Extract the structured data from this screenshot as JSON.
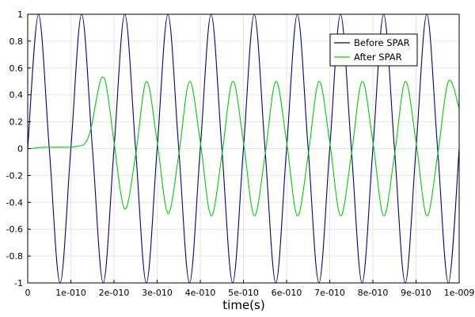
{
  "chart_data": {
    "type": "line",
    "xlabel": "time(s)",
    "ylabel": "",
    "xlim": [
      0,
      1e-09
    ],
    "ylim": [
      -1,
      1
    ],
    "grid": true,
    "legend_position": "top-right",
    "x_ticks": [
      {
        "value": 0,
        "label": "0"
      },
      {
        "value": 1e-10,
        "label": "1e-010"
      },
      {
        "value": 2e-10,
        "label": "2e-010"
      },
      {
        "value": 3e-10,
        "label": "3e-010"
      },
      {
        "value": 4e-10,
        "label": "4e-010"
      },
      {
        "value": 5e-10,
        "label": "5e-010"
      },
      {
        "value": 6e-10,
        "label": "6e-010"
      },
      {
        "value": 7e-10,
        "label": "7e-010"
      },
      {
        "value": 8e-10,
        "label": "8e-010"
      },
      {
        "value": 9e-10,
        "label": "9e-010"
      },
      {
        "value": 1e-09,
        "label": "1e-009"
      }
    ],
    "y_ticks": [
      {
        "value": 1,
        "label": "1"
      },
      {
        "value": 0.8,
        "label": "0.8"
      },
      {
        "value": 0.6,
        "label": "0.6"
      },
      {
        "value": 0.4,
        "label": "0.4"
      },
      {
        "value": 0.2,
        "label": "0.2"
      },
      {
        "value": 0,
        "label": "0"
      },
      {
        "value": -0.2,
        "label": "-0.2"
      },
      {
        "value": -0.4,
        "label": "-0.4"
      },
      {
        "value": -0.6,
        "label": "-0.6"
      },
      {
        "value": -0.8,
        "label": "-0.8"
      },
      {
        "value": -1,
        "label": "-1"
      }
    ],
    "series": [
      {
        "name": "Before SPAR",
        "color": "#000080",
        "x": [
          0,
          2.5e-11,
          5e-11,
          7.5e-11,
          1e-10,
          1.25e-10,
          1.5e-10,
          1.75e-10,
          2e-10,
          2.25e-10,
          2.5e-10,
          2.75e-10,
          3e-10,
          3.25e-10,
          3.5e-10,
          3.75e-10,
          4e-10,
          4.25e-10,
          4.5e-10,
          4.75e-10,
          5e-10,
          5.25e-10,
          5.5e-10,
          5.75e-10,
          6e-10,
          6.25e-10,
          6.5e-10,
          6.75e-10,
          7e-10,
          7.25e-10,
          7.5e-10,
          7.75e-10,
          8e-10,
          8.25e-10,
          8.5e-10,
          8.75e-10,
          9e-10,
          9.25e-10,
          9.5e-10,
          9.75e-10,
          1e-09
        ],
        "y": [
          0,
          1,
          0,
          -1,
          0,
          1,
          0,
          -1,
          0,
          1,
          0,
          -1,
          0,
          1,
          0,
          -1,
          0,
          1,
          0,
          -1,
          0,
          1,
          0,
          -1,
          0,
          1,
          0,
          -1,
          0,
          1,
          0,
          -1,
          0,
          1,
          0,
          -1,
          0,
          1,
          0,
          -1,
          0
        ]
      },
      {
        "name": "After SPAR",
        "color": "#00cc00",
        "x": [
          0,
          1e-11,
          2e-11,
          4e-11,
          6e-11,
          8e-11,
          1e-10,
          1.1e-10,
          1.2e-10,
          1.3e-10,
          1.4e-10,
          1.5e-10,
          1.6e-10,
          1.7e-10,
          1.8e-10,
          1.9e-10,
          2e-10,
          2.25e-10,
          2.5e-10,
          2.75e-10,
          3e-10,
          3.25e-10,
          3.5e-10,
          3.75e-10,
          4e-10,
          4.25e-10,
          4.5e-10,
          4.75e-10,
          5e-10,
          5.25e-10,
          5.5e-10,
          5.75e-10,
          6e-10,
          6.25e-10,
          6.5e-10,
          6.75e-10,
          7e-10,
          7.25e-10,
          7.5e-10,
          7.75e-10,
          8e-10,
          8.25e-10,
          8.5e-10,
          8.75e-10,
          9e-10,
          9.25e-10,
          9.5e-10,
          9.75e-10,
          1e-09
        ],
        "y": [
          0,
          0,
          0.005,
          0.01,
          0.01,
          0.01,
          0.01,
          0.015,
          0.02,
          0.03,
          0.08,
          0.2,
          0.38,
          0.52,
          0.5,
          0.3,
          0.05,
          -0.45,
          -0.05,
          0.5,
          0.05,
          -0.48,
          -0.05,
          0.5,
          0.05,
          -0.5,
          -0.05,
          0.5,
          0.05,
          -0.5,
          -0.05,
          0.5,
          0.05,
          -0.5,
          -0.05,
          0.5,
          0.05,
          -0.5,
          -0.05,
          0.5,
          0.05,
          -0.5,
          -0.05,
          0.5,
          0.05,
          -0.5,
          -0.05,
          0.5,
          0.3
        ]
      }
    ]
  }
}
